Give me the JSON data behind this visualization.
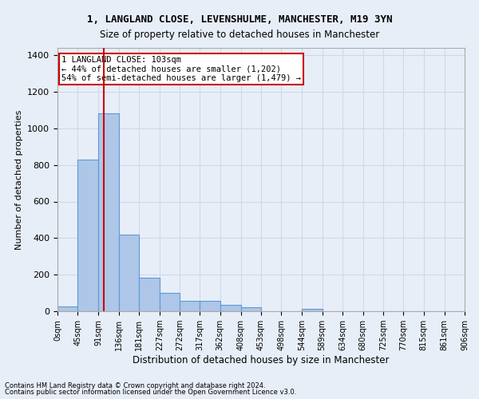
{
  "title_line1": "1, LANGLAND CLOSE, LEVENSHULME, MANCHESTER, M19 3YN",
  "title_line2": "Size of property relative to detached houses in Manchester",
  "xlabel": "Distribution of detached houses by size in Manchester",
  "ylabel": "Number of detached properties",
  "footnote1": "Contains HM Land Registry data © Crown copyright and database right 2024.",
  "footnote2": "Contains public sector information licensed under the Open Government Licence v3.0.",
  "bar_edges": [
    0,
    45,
    91,
    136,
    181,
    227,
    272,
    317,
    362,
    408,
    453,
    498,
    544,
    589,
    634,
    680,
    725,
    770,
    815,
    861,
    906
  ],
  "bar_heights": [
    25,
    830,
    1080,
    420,
    185,
    100,
    58,
    58,
    35,
    22,
    0,
    0,
    14,
    0,
    0,
    0,
    0,
    0,
    0,
    0
  ],
  "bar_color": "#aec6e8",
  "bar_edge_color": "#5b9bd5",
  "property_line_x": 103,
  "property_label": "1 LANGLAND CLOSE: 103sqm",
  "annotation_line2": "← 44% of detached houses are smaller (1,202)",
  "annotation_line3": "54% of semi-detached houses are larger (1,479) →",
  "annotation_box_color": "#ffffff",
  "annotation_box_edge": "#cc0000",
  "vline_color": "#cc0000",
  "ylim": [
    0,
    1440
  ],
  "yticks": [
    0,
    200,
    400,
    600,
    800,
    1000,
    1200,
    1400
  ],
  "tick_labels": [
    "0sqm",
    "45sqm",
    "91sqm",
    "136sqm",
    "181sqm",
    "227sqm",
    "272sqm",
    "317sqm",
    "362sqm",
    "408sqm",
    "453sqm",
    "498sqm",
    "544sqm",
    "589sqm",
    "634sqm",
    "680sqm",
    "725sqm",
    "770sqm",
    "815sqm",
    "861sqm",
    "906sqm"
  ],
  "grid_color": "#d0d8e8",
  "bg_color": "#e8eef8"
}
